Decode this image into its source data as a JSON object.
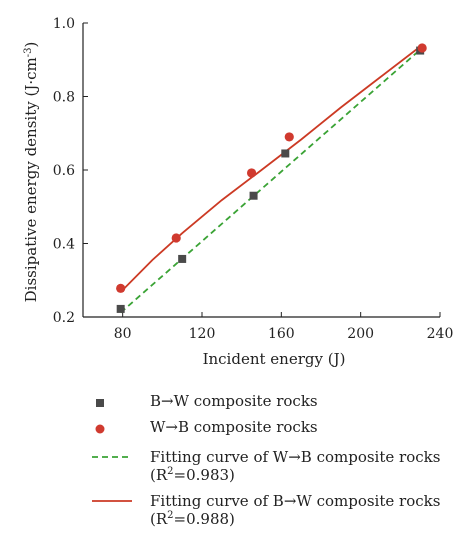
{
  "chart_data": {
    "type": "scatter",
    "xlabel": "Incident energy (J)",
    "ylabel_main": "Dissipative energy density (J·cm",
    "ylabel_sup": "-3",
    "ylabel_tail": ")",
    "xlim": [
      60,
      240
    ],
    "ylim": [
      0.2,
      1.0
    ],
    "xticks": [
      80,
      120,
      160,
      200,
      240
    ],
    "yticks": [
      0.2,
      0.4,
      0.6,
      0.8,
      1.0
    ],
    "series": [
      {
        "name": "B→W composite rocks",
        "kind": "scatter",
        "marker": "square",
        "color": "#4a4a4a",
        "x": [
          79,
          110,
          146,
          162,
          230
        ],
        "y": [
          0.222,
          0.358,
          0.53,
          0.645,
          0.925
        ]
      },
      {
        "name": "W→B composite rocks",
        "kind": "scatter",
        "marker": "circle",
        "color": "#d03a2f",
        "x": [
          79,
          107,
          145,
          164,
          231
        ],
        "y": [
          0.278,
          0.415,
          0.592,
          0.69,
          0.932
        ]
      },
      {
        "name_main": "Fitting curve of W→B composite rocks (R",
        "name_sup": "2",
        "name_tail": "=0.983)",
        "kind": "line",
        "dash": true,
        "color": "#3aa335",
        "x": [
          79,
          231
        ],
        "y": [
          0.212,
          0.932
        ]
      },
      {
        "name_main": "Fitting curve of B→W composite rocks (R",
        "name_sup": "2",
        "name_tail": "=0.988)",
        "kind": "line",
        "dash": false,
        "color": "#cc3a24",
        "x": [
          79,
          95,
          110,
          130,
          150,
          170,
          190,
          210,
          231
        ],
        "y": [
          0.268,
          0.355,
          0.428,
          0.518,
          0.6,
          0.683,
          0.77,
          0.853,
          0.94
        ]
      }
    ]
  }
}
